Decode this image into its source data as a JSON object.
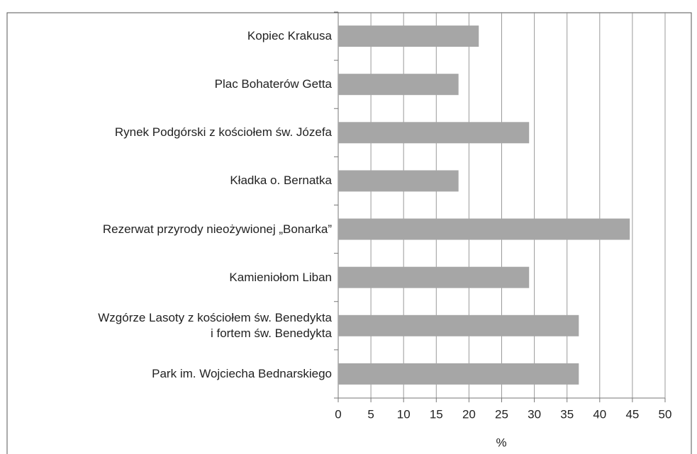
{
  "chart_data": {
    "type": "bar",
    "orientation": "horizontal",
    "categories": [
      "Kopiec Krakusa",
      "Plac Bohaterów Getta",
      "Rynek Podgórski z kościołem św. Józefa",
      "Kładka o. Bernatka",
      "Rezerwat przyrody nieożywionej „Bonarka”",
      "Kamieniołom Liban",
      "Wzgórze Lasoty z kościołem św. Benedykta\ni fortem św. Benedykta",
      "Park im. Wojciecha Bednarskiego"
    ],
    "values": [
      21.5,
      18.4,
      29.2,
      18.4,
      44.6,
      29.2,
      36.8,
      36.8
    ],
    "color": "#a6a6a6",
    "xlabel": "%",
    "xlim": [
      0,
      50
    ],
    "xticks": [
      0,
      5,
      10,
      15,
      20,
      25,
      30,
      35,
      40,
      45,
      50
    ],
    "grid": true
  }
}
